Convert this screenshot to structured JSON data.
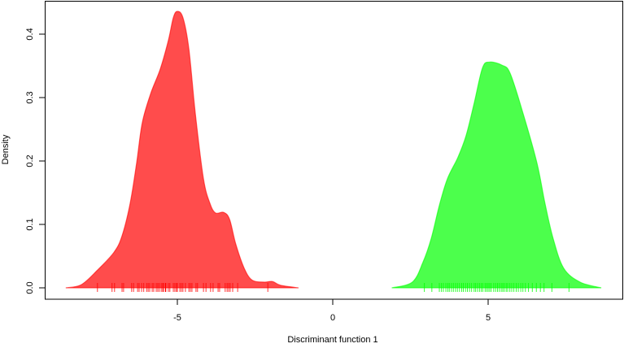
{
  "chart_data": {
    "type": "area",
    "title": "",
    "xlabel": "Discriminant function 1",
    "ylabel": "Density",
    "xlim": [
      -9.8,
      9.3
    ],
    "ylim": [
      0,
      0.45
    ],
    "x_ticks": [
      -5,
      0,
      5
    ],
    "x_tick_labels": [
      "-5",
      "0",
      "5"
    ],
    "y_ticks": [
      0,
      0.1,
      0.2,
      0.3,
      0.4
    ],
    "y_tick_labels": [
      "0.0",
      "0.1",
      "0.2",
      "0.3",
      "0.4"
    ],
    "grid": false,
    "series": [
      {
        "color": "#ff0000",
        "fill": "#ff4c4c",
        "density": {
          "x": [
            -8.59,
            -8.09,
            -7.57,
            -7.04,
            -6.78,
            -6.52,
            -6.31,
            -6.13,
            -5.86,
            -5.55,
            -5.29,
            -5.13,
            -5.0,
            -4.82,
            -4.63,
            -4.42,
            -4.16,
            -3.95,
            -3.77,
            -3.51,
            -3.32,
            -3.12,
            -2.85,
            -2.59,
            -2.2,
            -1.94,
            -1.68,
            -1.1
          ],
          "y": [
            0,
            0.005,
            0.028,
            0.056,
            0.082,
            0.133,
            0.197,
            0.26,
            0.306,
            0.345,
            0.39,
            0.426,
            0.436,
            0.426,
            0.377,
            0.274,
            0.172,
            0.133,
            0.118,
            0.119,
            0.108,
            0.069,
            0.031,
            0.012,
            0.009,
            0.01,
            0.004,
            0
          ]
        },
        "rug": [
          -7.57,
          -7.1,
          -7.02,
          -6.78,
          -6.73,
          -6.47,
          -6.41,
          -6.28,
          -6.23,
          -6.15,
          -6.08,
          -5.99,
          -5.94,
          -5.89,
          -5.81,
          -5.76,
          -5.68,
          -5.63,
          -5.58,
          -5.52,
          -5.47,
          -5.45,
          -5.39,
          -5.37,
          -5.29,
          -5.24,
          -5.13,
          -5.08,
          -5.03,
          -5.0,
          -4.92,
          -4.87,
          -4.82,
          -4.74,
          -4.63,
          -4.58,
          -4.53,
          -4.4,
          -4.35,
          -4.16,
          -4.08,
          -3.93,
          -3.85,
          -3.69,
          -3.64,
          -3.46,
          -3.4,
          -3.35,
          -3.3,
          -3.22,
          -3.06,
          -2.09
        ]
      },
      {
        "color": "#00ff00",
        "fill": "#4cff4c",
        "density": {
          "x": [
            1.9,
            2.56,
            2.9,
            3.17,
            3.43,
            3.69,
            4.03,
            4.29,
            4.55,
            4.82,
            5.05,
            5.45,
            5.71,
            6.13,
            6.57,
            6.83,
            7.09,
            7.43,
            7.96,
            8.64
          ],
          "y": [
            0,
            0.009,
            0.04,
            0.078,
            0.13,
            0.172,
            0.206,
            0.24,
            0.291,
            0.347,
            0.356,
            0.351,
            0.338,
            0.274,
            0.197,
            0.133,
            0.078,
            0.031,
            0.009,
            0
          ]
        },
        "rug": [
          2.95,
          3.19,
          3.43,
          3.5,
          3.56,
          3.64,
          3.7,
          3.75,
          3.82,
          3.88,
          3.95,
          4.01,
          4.08,
          4.15,
          4.2,
          4.27,
          4.33,
          4.4,
          4.47,
          4.55,
          4.6,
          4.66,
          4.72,
          4.78,
          4.83,
          4.9,
          4.95,
          5.0,
          5.05,
          5.1,
          5.18,
          5.24,
          5.3,
          5.36,
          5.42,
          5.47,
          5.52,
          5.58,
          5.63,
          5.7,
          5.76,
          5.83,
          5.9,
          5.97,
          6.05,
          6.12,
          6.2,
          6.3,
          6.42,
          6.55,
          6.68,
          6.8,
          7.05,
          7.6
        ]
      }
    ]
  }
}
